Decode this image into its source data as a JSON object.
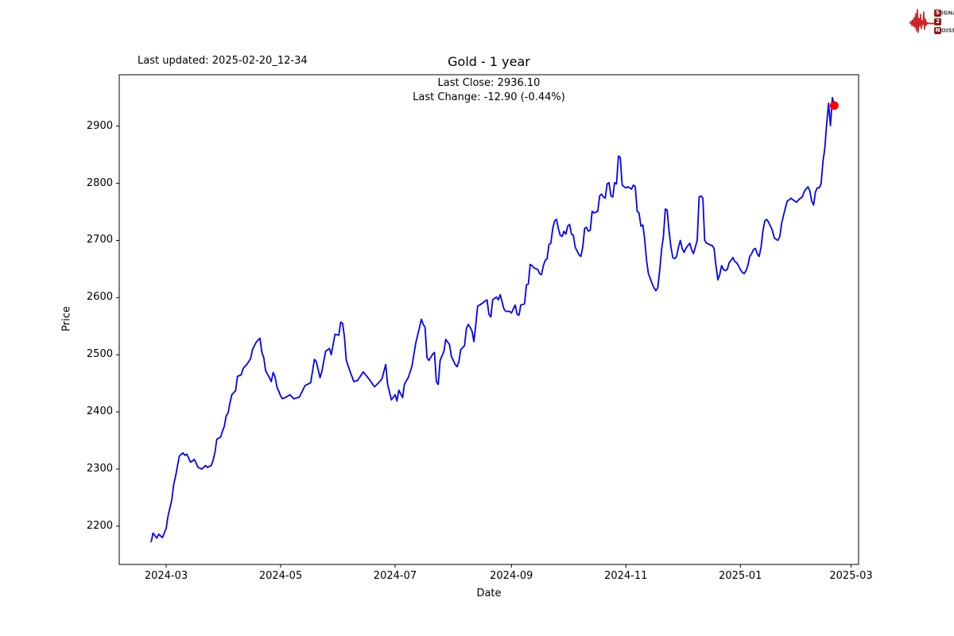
{
  "figure": {
    "last_updated": "Last updated: 2025-02-20_12-34",
    "title": "Gold - 1 year",
    "annotations": {
      "last_close": "Last Close: 2936.10",
      "last_change": "Last Change: -12.90 (-0.44%)"
    },
    "xlabel": "Date",
    "ylabel": "Price"
  },
  "logo": {
    "name": "Signal 2 Noise",
    "rows": [
      {
        "boxed": "S",
        "rest": "IGNAL"
      },
      {
        "boxed": "2",
        "rest": ""
      },
      {
        "boxed": "N",
        "rest": "OISE"
      }
    ],
    "waveform_color": "#cf2525",
    "box_color": "#8b1a1a",
    "letter_color": "#4d4d4d"
  },
  "chart_data": {
    "type": "line",
    "title": "Gold - 1 year",
    "series_name": "Gold",
    "xlabel": "Date",
    "ylabel": "Price",
    "line_color": "#0000ff",
    "line_width": 1.8,
    "last_point_marker_color": "#ff0000",
    "last_close": 2936.1,
    "last_change": -12.9,
    "last_change_pct": -0.44,
    "grid": false,
    "xlim": [
      "2024-02-05",
      "2025-03-05"
    ],
    "ylim": [
      2133,
      2990
    ],
    "y_ticks": [
      2200,
      2300,
      2400,
      2500,
      2600,
      2700,
      2800,
      2900
    ],
    "x_ticks": [
      {
        "label": "2024-03",
        "date": "2024-03-01"
      },
      {
        "label": "2024-05",
        "date": "2024-05-01"
      },
      {
        "label": "2024-07",
        "date": "2024-07-01"
      },
      {
        "label": "2024-09",
        "date": "2024-09-01"
      },
      {
        "label": "2024-11",
        "date": "2024-11-01"
      },
      {
        "label": "2025-01",
        "date": "2025-01-01"
      },
      {
        "label": "2025-03",
        "date": "2025-03-01"
      }
    ],
    "points": [
      [
        "2024-02-22",
        2172
      ],
      [
        "2024-02-23",
        2188
      ],
      [
        "2024-02-25",
        2179
      ],
      [
        "2024-02-26",
        2186
      ],
      [
        "2024-02-28",
        2180
      ],
      [
        "2024-03-01",
        2196
      ],
      [
        "2024-03-02",
        2218
      ],
      [
        "2024-03-04",
        2246
      ],
      [
        "2024-03-05",
        2273
      ],
      [
        "2024-03-06",
        2287
      ],
      [
        "2024-03-07",
        2305
      ],
      [
        "2024-03-08",
        2322
      ],
      [
        "2024-03-09",
        2326
      ],
      [
        "2024-03-10",
        2328
      ],
      [
        "2024-03-11",
        2324
      ],
      [
        "2024-03-12",
        2326
      ],
      [
        "2024-03-13",
        2319
      ],
      [
        "2024-03-14",
        2312
      ],
      [
        "2024-03-15",
        2314
      ],
      [
        "2024-03-16",
        2317
      ],
      [
        "2024-03-17",
        2310
      ],
      [
        "2024-03-18",
        2303
      ],
      [
        "2024-03-20",
        2300
      ],
      [
        "2024-03-21",
        2303
      ],
      [
        "2024-03-22",
        2306
      ],
      [
        "2024-03-23",
        2303
      ],
      [
        "2024-03-25",
        2306
      ],
      [
        "2024-03-26",
        2315
      ],
      [
        "2024-03-27",
        2329
      ],
      [
        "2024-03-28",
        2352
      ],
      [
        "2024-03-30",
        2356
      ],
      [
        "2024-03-31",
        2366
      ],
      [
        "2024-04-01",
        2375
      ],
      [
        "2024-04-02",
        2393
      ],
      [
        "2024-04-03",
        2398
      ],
      [
        "2024-04-04",
        2416
      ],
      [
        "2024-04-05",
        2430
      ],
      [
        "2024-04-07",
        2437
      ],
      [
        "2024-04-08",
        2462
      ],
      [
        "2024-04-10",
        2465
      ],
      [
        "2024-04-11",
        2476
      ],
      [
        "2024-04-13",
        2483
      ],
      [
        "2024-04-15",
        2493
      ],
      [
        "2024-04-16",
        2509
      ],
      [
        "2024-04-18",
        2522
      ],
      [
        "2024-04-20",
        2529
      ],
      [
        "2024-04-21",
        2504
      ],
      [
        "2024-04-22",
        2495
      ],
      [
        "2024-04-23",
        2472
      ],
      [
        "2024-04-25",
        2460
      ],
      [
        "2024-04-26",
        2453
      ],
      [
        "2024-04-27",
        2469
      ],
      [
        "2024-04-28",
        2462
      ],
      [
        "2024-04-29",
        2444
      ],
      [
        "2024-05-01",
        2428
      ],
      [
        "2024-05-02",
        2423
      ],
      [
        "2024-05-04",
        2426
      ],
      [
        "2024-05-06",
        2430
      ],
      [
        "2024-05-08",
        2423
      ],
      [
        "2024-05-11",
        2426
      ],
      [
        "2024-05-14",
        2446
      ],
      [
        "2024-05-17",
        2451
      ],
      [
        "2024-05-19",
        2492
      ],
      [
        "2024-05-20",
        2488
      ],
      [
        "2024-05-22",
        2460
      ],
      [
        "2024-05-23",
        2471
      ],
      [
        "2024-05-25",
        2506
      ],
      [
        "2024-05-27",
        2511
      ],
      [
        "2024-05-28",
        2500
      ],
      [
        "2024-05-30",
        2536
      ],
      [
        "2024-06-01",
        2534
      ],
      [
        "2024-06-02",
        2557
      ],
      [
        "2024-06-03",
        2555
      ],
      [
        "2024-06-04",
        2532
      ],
      [
        "2024-06-05",
        2490
      ],
      [
        "2024-06-07",
        2471
      ],
      [
        "2024-06-09",
        2453
      ],
      [
        "2024-06-11",
        2455
      ],
      [
        "2024-06-14",
        2470
      ],
      [
        "2024-06-17",
        2458
      ],
      [
        "2024-06-20",
        2444
      ],
      [
        "2024-06-22",
        2450
      ],
      [
        "2024-06-24",
        2458
      ],
      [
        "2024-06-26",
        2483
      ],
      [
        "2024-06-27",
        2449
      ],
      [
        "2024-06-29",
        2421
      ],
      [
        "2024-07-01",
        2430
      ],
      [
        "2024-07-02",
        2419
      ],
      [
        "2024-07-03",
        2438
      ],
      [
        "2024-07-05",
        2425
      ],
      [
        "2024-07-06",
        2449
      ],
      [
        "2024-07-08",
        2460
      ],
      [
        "2024-07-10",
        2480
      ],
      [
        "2024-07-12",
        2520
      ],
      [
        "2024-07-14",
        2548
      ],
      [
        "2024-07-15",
        2562
      ],
      [
        "2024-07-16",
        2553
      ],
      [
        "2024-07-17",
        2548
      ],
      [
        "2024-07-18",
        2495
      ],
      [
        "2024-07-19",
        2490
      ],
      [
        "2024-07-21",
        2501
      ],
      [
        "2024-07-22",
        2504
      ],
      [
        "2024-07-23",
        2453
      ],
      [
        "2024-07-24",
        2448
      ],
      [
        "2024-07-25",
        2490
      ],
      [
        "2024-07-27",
        2506
      ],
      [
        "2024-07-28",
        2527
      ],
      [
        "2024-07-29",
        2522
      ],
      [
        "2024-07-30",
        2518
      ],
      [
        "2024-07-31",
        2497
      ],
      [
        "2024-08-02",
        2483
      ],
      [
        "2024-08-03",
        2479
      ],
      [
        "2024-08-04",
        2488
      ],
      [
        "2024-08-05",
        2509
      ],
      [
        "2024-08-07",
        2516
      ],
      [
        "2024-08-08",
        2546
      ],
      [
        "2024-08-09",
        2553
      ],
      [
        "2024-08-10",
        2548
      ],
      [
        "2024-08-11",
        2541
      ],
      [
        "2024-08-12",
        2523
      ],
      [
        "2024-08-13",
        2553
      ],
      [
        "2024-08-14",
        2585
      ],
      [
        "2024-08-15",
        2587
      ],
      [
        "2024-08-16",
        2589
      ],
      [
        "2024-08-18",
        2594
      ],
      [
        "2024-08-19",
        2596
      ],
      [
        "2024-08-20",
        2571
      ],
      [
        "2024-08-21",
        2566
      ],
      [
        "2024-08-22",
        2596
      ],
      [
        "2024-08-24",
        2601
      ],
      [
        "2024-08-25",
        2596
      ],
      [
        "2024-08-26",
        2605
      ],
      [
        "2024-08-28",
        2580
      ],
      [
        "2024-08-29",
        2576
      ],
      [
        "2024-08-31",
        2576
      ],
      [
        "2024-09-01",
        2573
      ],
      [
        "2024-09-03",
        2587
      ],
      [
        "2024-09-04",
        2571
      ],
      [
        "2024-09-05",
        2569
      ],
      [
        "2024-09-06",
        2587
      ],
      [
        "2024-09-08",
        2589
      ],
      [
        "2024-09-09",
        2622
      ],
      [
        "2024-09-10",
        2624
      ],
      [
        "2024-09-11",
        2658
      ],
      [
        "2024-09-12",
        2656
      ],
      [
        "2024-09-13",
        2652
      ],
      [
        "2024-09-15",
        2649
      ],
      [
        "2024-09-16",
        2642
      ],
      [
        "2024-09-17",
        2640
      ],
      [
        "2024-09-18",
        2656
      ],
      [
        "2024-09-19",
        2665
      ],
      [
        "2024-09-20",
        2668
      ],
      [
        "2024-09-21",
        2693
      ],
      [
        "2024-09-22",
        2695
      ],
      [
        "2024-09-23",
        2721
      ],
      [
        "2024-09-24",
        2734
      ],
      [
        "2024-09-25",
        2737
      ],
      [
        "2024-09-26",
        2721
      ],
      [
        "2024-09-27",
        2709
      ],
      [
        "2024-09-28",
        2707
      ],
      [
        "2024-09-29",
        2716
      ],
      [
        "2024-09-30",
        2711
      ],
      [
        "2024-10-01",
        2725
      ],
      [
        "2024-10-02",
        2728
      ],
      [
        "2024-10-03",
        2711
      ],
      [
        "2024-10-04",
        2709
      ],
      [
        "2024-10-05",
        2688
      ],
      [
        "2024-10-07",
        2675
      ],
      [
        "2024-10-08",
        2672
      ],
      [
        "2024-10-09",
        2688
      ],
      [
        "2024-10-10",
        2721
      ],
      [
        "2024-10-11",
        2723
      ],
      [
        "2024-10-12",
        2716
      ],
      [
        "2024-10-13",
        2718
      ],
      [
        "2024-10-14",
        2751
      ],
      [
        "2024-10-15",
        2748
      ],
      [
        "2024-10-17",
        2751
      ],
      [
        "2024-10-18",
        2778
      ],
      [
        "2024-10-19",
        2781
      ],
      [
        "2024-10-20",
        2776
      ],
      [
        "2024-10-21",
        2774
      ],
      [
        "2024-10-22",
        2799
      ],
      [
        "2024-10-23",
        2801
      ],
      [
        "2024-10-24",
        2778
      ],
      [
        "2024-10-25",
        2776
      ],
      [
        "2024-10-26",
        2801
      ],
      [
        "2024-10-27",
        2799
      ],
      [
        "2024-10-28",
        2848
      ],
      [
        "2024-10-29",
        2845
      ],
      [
        "2024-10-30",
        2797
      ],
      [
        "2024-10-31",
        2794
      ],
      [
        "2024-11-01",
        2792
      ],
      [
        "2024-11-02",
        2794
      ],
      [
        "2024-11-03",
        2792
      ],
      [
        "2024-11-04",
        2790
      ],
      [
        "2024-11-05",
        2797
      ],
      [
        "2024-11-06",
        2794
      ],
      [
        "2024-11-07",
        2751
      ],
      [
        "2024-11-08",
        2748
      ],
      [
        "2024-11-09",
        2725
      ],
      [
        "2024-11-10",
        2727
      ],
      [
        "2024-11-11",
        2702
      ],
      [
        "2024-11-12",
        2665
      ],
      [
        "2024-11-13",
        2642
      ],
      [
        "2024-11-15",
        2624
      ],
      [
        "2024-11-16",
        2617
      ],
      [
        "2024-11-17",
        2612
      ],
      [
        "2024-11-18",
        2617
      ],
      [
        "2024-11-19",
        2647
      ],
      [
        "2024-11-20",
        2684
      ],
      [
        "2024-11-21",
        2707
      ],
      [
        "2024-11-22",
        2755
      ],
      [
        "2024-11-23",
        2753
      ],
      [
        "2024-11-24",
        2716
      ],
      [
        "2024-11-25",
        2688
      ],
      [
        "2024-11-26",
        2670
      ],
      [
        "2024-11-27",
        2668
      ],
      [
        "2024-11-28",
        2672
      ],
      [
        "2024-11-29",
        2688
      ],
      [
        "2024-11-30",
        2700
      ],
      [
        "2024-12-01",
        2686
      ],
      [
        "2024-12-02",
        2679
      ],
      [
        "2024-12-03",
        2686
      ],
      [
        "2024-12-04",
        2691
      ],
      [
        "2024-12-05",
        2695
      ],
      [
        "2024-12-06",
        2684
      ],
      [
        "2024-12-07",
        2677
      ],
      [
        "2024-12-09",
        2700
      ],
      [
        "2024-12-10",
        2776
      ],
      [
        "2024-12-11",
        2778
      ],
      [
        "2024-12-12",
        2774
      ],
      [
        "2024-12-13",
        2700
      ],
      [
        "2024-12-14",
        2695
      ],
      [
        "2024-12-15",
        2694
      ],
      [
        "2024-12-16",
        2692
      ],
      [
        "2024-12-17",
        2691
      ],
      [
        "2024-12-18",
        2686
      ],
      [
        "2024-12-19",
        2656
      ],
      [
        "2024-12-20",
        2631
      ],
      [
        "2024-12-21",
        2640
      ],
      [
        "2024-12-22",
        2656
      ],
      [
        "2024-12-23",
        2649
      ],
      [
        "2024-12-24",
        2647
      ],
      [
        "2024-12-25",
        2649
      ],
      [
        "2024-12-26",
        2661
      ],
      [
        "2024-12-27",
        2665
      ],
      [
        "2024-12-28",
        2670
      ],
      [
        "2024-12-29",
        2663
      ],
      [
        "2024-12-30",
        2661
      ],
      [
        "2024-12-31",
        2656
      ],
      [
        "2025-01-01",
        2649
      ],
      [
        "2025-01-02",
        2644
      ],
      [
        "2025-01-03",
        2642
      ],
      [
        "2025-01-04",
        2647
      ],
      [
        "2025-01-05",
        2656
      ],
      [
        "2025-01-06",
        2672
      ],
      [
        "2025-01-07",
        2677
      ],
      [
        "2025-01-08",
        2684
      ],
      [
        "2025-01-09",
        2686
      ],
      [
        "2025-01-10",
        2677
      ],
      [
        "2025-01-11",
        2672
      ],
      [
        "2025-01-12",
        2688
      ],
      [
        "2025-01-13",
        2716
      ],
      [
        "2025-01-14",
        2734
      ],
      [
        "2025-01-15",
        2737
      ],
      [
        "2025-01-16",
        2732
      ],
      [
        "2025-01-17",
        2725
      ],
      [
        "2025-01-18",
        2718
      ],
      [
        "2025-01-19",
        2705
      ],
      [
        "2025-01-20",
        2702
      ],
      [
        "2025-01-21",
        2700
      ],
      [
        "2025-01-22",
        2707
      ],
      [
        "2025-01-23",
        2730
      ],
      [
        "2025-01-24",
        2744
      ],
      [
        "2025-01-25",
        2757
      ],
      [
        "2025-01-26",
        2769
      ],
      [
        "2025-01-27",
        2771
      ],
      [
        "2025-01-28",
        2774
      ],
      [
        "2025-01-29",
        2771
      ],
      [
        "2025-01-30",
        2769
      ],
      [
        "2025-01-31",
        2767
      ],
      [
        "2025-02-01",
        2771
      ],
      [
        "2025-02-02",
        2774
      ],
      [
        "2025-02-03",
        2776
      ],
      [
        "2025-02-04",
        2785
      ],
      [
        "2025-02-05",
        2790
      ],
      [
        "2025-02-06",
        2794
      ],
      [
        "2025-02-07",
        2787
      ],
      [
        "2025-02-08",
        2769
      ],
      [
        "2025-02-09",
        2762
      ],
      [
        "2025-02-10",
        2785
      ],
      [
        "2025-02-11",
        2792
      ],
      [
        "2025-02-12",
        2792
      ],
      [
        "2025-02-13",
        2799
      ],
      [
        "2025-02-14",
        2838
      ],
      [
        "2025-02-15",
        2861
      ],
      [
        "2025-02-16",
        2905
      ],
      [
        "2025-02-17",
        2940
      ],
      [
        "2025-02-18",
        2901
      ],
      [
        "2025-02-19",
        2950
      ],
      [
        "2025-02-20",
        2936.1
      ]
    ]
  }
}
